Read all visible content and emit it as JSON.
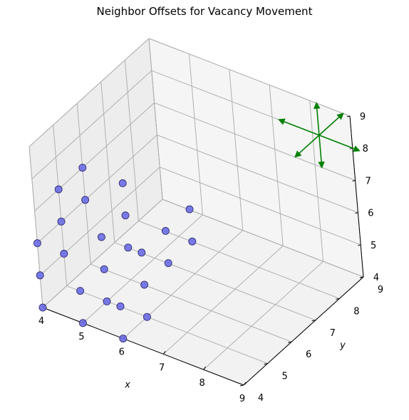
{
  "chart_data": {
    "type": "scatter",
    "title": "Neighbor Offsets for Vacancy Movement",
    "xlabel": "x",
    "ylabel": "y",
    "zlabel": "",
    "xlim": [
      4,
      9
    ],
    "ylim": [
      4,
      9
    ],
    "zlim": [
      4,
      9
    ],
    "xticks": [
      4,
      5,
      6,
      7,
      8,
      9
    ],
    "yticks": [
      4,
      5,
      6,
      7,
      8,
      9
    ],
    "zticks": [
      4,
      5,
      6,
      7,
      8,
      9
    ],
    "grid": true,
    "marker_color": "#6b6be8",
    "arrow_color": "#008000",
    "points": [
      [
        4,
        4,
        4
      ],
      [
        4,
        4,
        5
      ],
      [
        4,
        4,
        6
      ],
      [
        4,
        5,
        5
      ],
      [
        4,
        5,
        6
      ],
      [
        4,
        5,
        7
      ],
      [
        4,
        6,
        6
      ],
      [
        4,
        6,
        7
      ],
      [
        5,
        4,
        4
      ],
      [
        5,
        4,
        5
      ],
      [
        5,
        5,
        4
      ],
      [
        5,
        5,
        5
      ],
      [
        5,
        5,
        6
      ],
      [
        5,
        6,
        5
      ],
      [
        5,
        6,
        6
      ],
      [
        5,
        6,
        7
      ],
      [
        6,
        4,
        4
      ],
      [
        6,
        4,
        5
      ],
      [
        6,
        5,
        4
      ],
      [
        6,
        5,
        5
      ],
      [
        6,
        5,
        6
      ],
      [
        6,
        6,
        5
      ],
      [
        6,
        6,
        6
      ],
      [
        6,
        7,
        5
      ],
      [
        6,
        7,
        6
      ]
    ],
    "arrows": {
      "origin": [
        8.5,
        8.5,
        8.5
      ],
      "offsets": [
        [
          1,
          0,
          0
        ],
        [
          -1,
          0,
          0
        ],
        [
          0,
          1,
          0
        ],
        [
          0,
          -1,
          0
        ],
        [
          0,
          0,
          1
        ],
        [
          0,
          0,
          -1
        ]
      ]
    }
  }
}
